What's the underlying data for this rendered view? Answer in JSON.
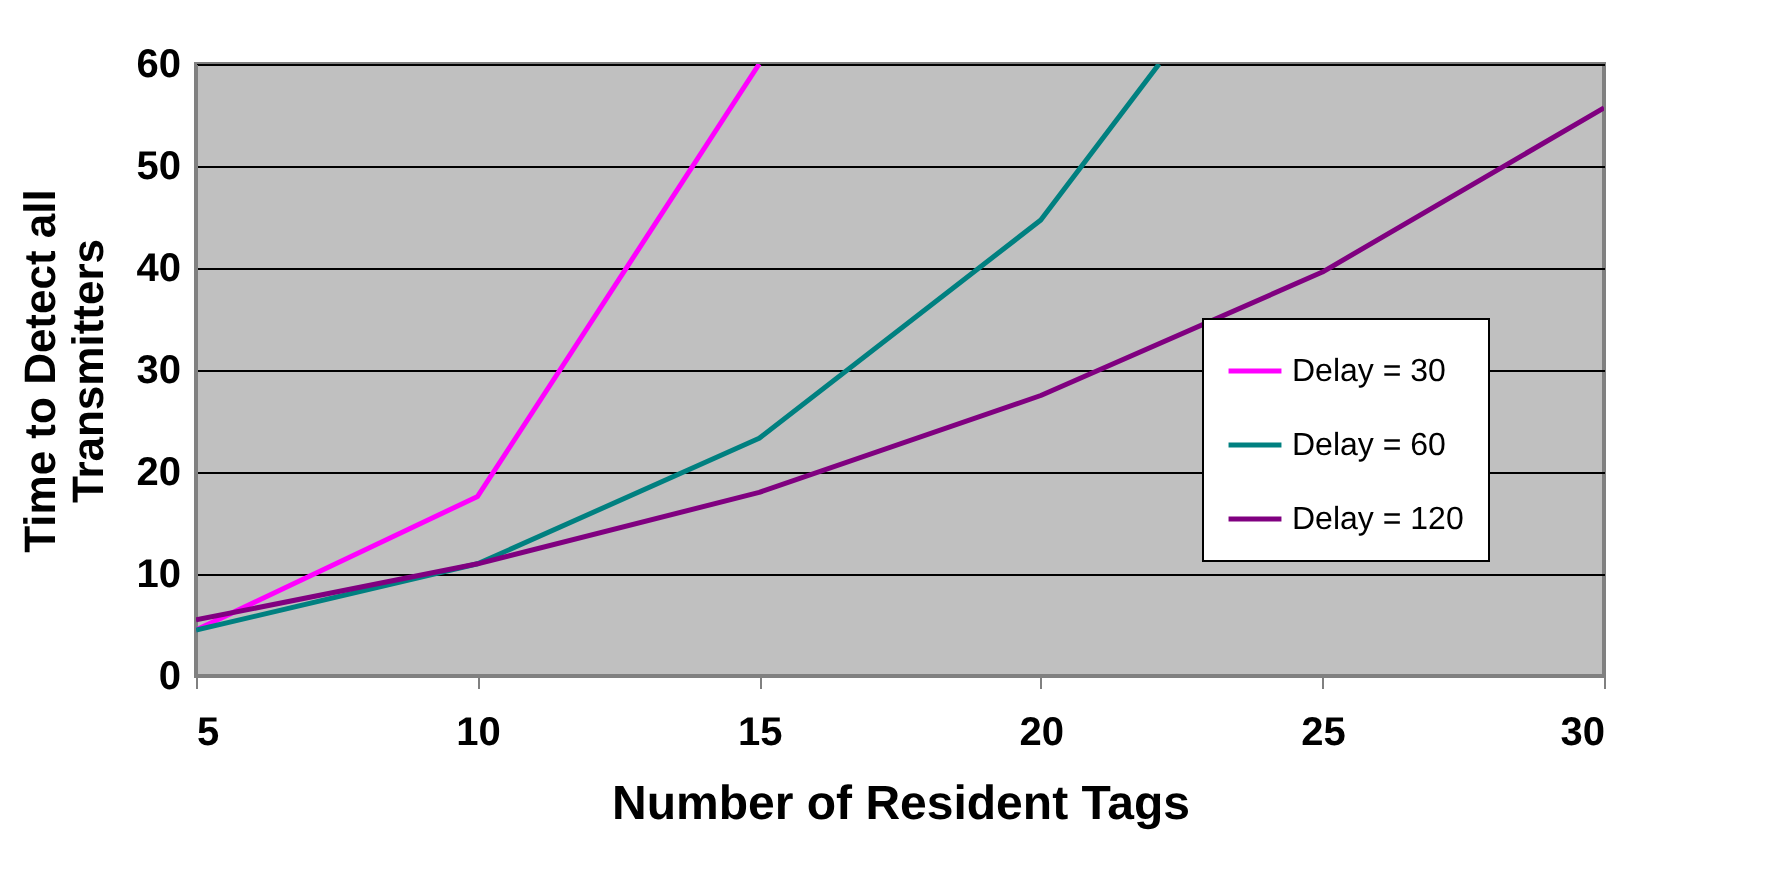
{
  "chart_data": {
    "type": "line",
    "xlabel": "Number of Resident Tags",
    "ylabel": "Time to Detect all Transmitters",
    "xlim": [
      5,
      30
    ],
    "xticks": [
      5,
      10,
      15,
      20,
      25,
      30
    ],
    "ylim": [
      0,
      60
    ],
    "yticks": [
      0,
      10,
      20,
      30,
      40,
      50,
      60
    ],
    "grid": "y",
    "legend": "bottom right",
    "marker": "none",
    "line_style": "solid",
    "series": [
      {
        "name": "Delay = 30",
        "color": "#ff00ff",
        "x": [
          5,
          10,
          15
        ],
        "values": [
          4.5,
          17.6,
          60
        ]
      },
      {
        "name": "Delay = 60",
        "color": "#008080",
        "x": [
          5,
          10,
          15,
          20,
          22.1
        ],
        "values": [
          4.5,
          11,
          23.3,
          44.7,
          60
        ]
      },
      {
        "name": "Delay = 120",
        "color": "#800080",
        "x": [
          5,
          10,
          15,
          20,
          25,
          30
        ],
        "values": [
          5.5,
          11,
          18,
          27.5,
          39.6,
          55.7
        ]
      }
    ]
  }
}
